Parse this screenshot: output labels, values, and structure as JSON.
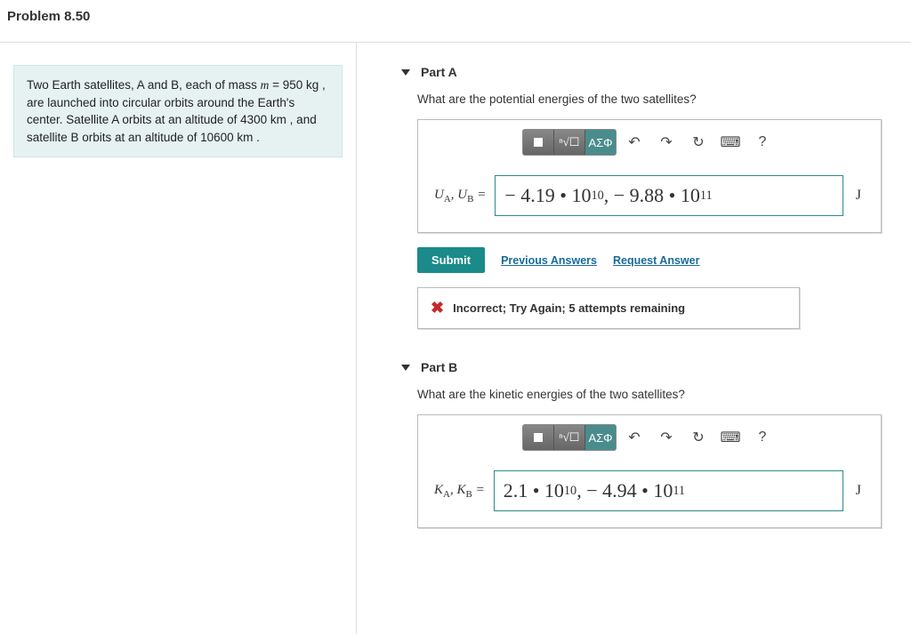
{
  "problem_title": "Problem 8.50",
  "statement_html": "Two Earth satellites, A and B, each of mass <span class='ital'>m</span> = 950 kg , are launched into circular orbits around the Earth's center. Satellite A orbits at an altitude of 4300 km , and satellite B orbits at an altitude of 10600 km .",
  "parts": {
    "A": {
      "label": "Part A",
      "question": "What are the potential energies of the two satellites?",
      "var_html": "<i>U</i><sub>A</sub>, <i>U</i><sub>B</sub> =",
      "answer_html": "− 4.19 • 10<sup>10</sup>, − 9.88 • 10<sup>11</sup>",
      "unit": "J",
      "submit": "Submit",
      "prev": "Previous Answers",
      "req": "Request Answer",
      "feedback": "Incorrect; Try Again; 5 attempts remaining"
    },
    "B": {
      "label": "Part B",
      "question": "What are the kinetic energies of the two satellites?",
      "var_html": "<i>K</i><sub>A</sub>, <i>K</i><sub>B</sub> =",
      "answer_html": "2.1 • 10<sup>10</sup>, − 4.94 • 10<sup>11</sup>",
      "unit": "J"
    }
  },
  "toolbar": {
    "template_btn": "■",
    "fraction_btn": "√",
    "greek_btn": "ΑΣΦ",
    "undo": "↶",
    "redo": "↷",
    "reset": "↻",
    "keyboard": "⌨",
    "help": "?"
  },
  "colors": {
    "teal": "#1a8a8a",
    "panel_bg": "#e6f2f2",
    "link": "#1a6a9a",
    "error": "#c62828"
  }
}
